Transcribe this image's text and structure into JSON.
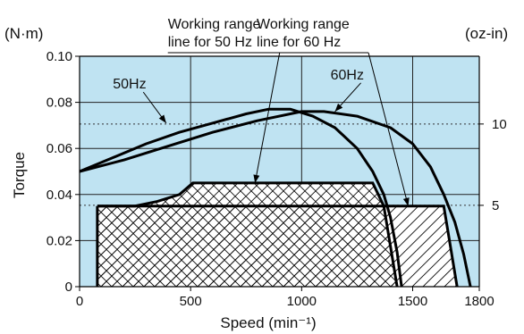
{
  "chart_data": {
    "type": "line",
    "xlabel": "Speed (min⁻¹)",
    "ylabel": "Torque",
    "y_unit_left": "(N·m)",
    "y_unit_right": "(oz-in)",
    "xlim": [
      0,
      1800
    ],
    "ylim": [
      0,
      0.1
    ],
    "x_ticks": [
      0,
      500,
      1000,
      1500,
      1800
    ],
    "x_tick_labels": [
      "0",
      "500",
      "1000",
      "1500",
      "1800"
    ],
    "y_ticks": [
      0,
      0.02,
      0.04,
      0.06,
      0.08,
      0.1
    ],
    "y_tick_labels": [
      "0",
      "0.02",
      "0.04",
      "0.06",
      "0.08",
      "0.10"
    ],
    "secondary_axis": {
      "ticks": [
        {
          "label": "5",
          "y": 0.0353
        },
        {
          "label": "10",
          "y": 0.0706
        }
      ]
    },
    "plot_background": "#bfe3f2",
    "grid": true,
    "series": [
      {
        "name": "50Hz",
        "x": [
          0,
          150,
          300,
          450,
          600,
          750,
          850,
          950,
          1050,
          1150,
          1250,
          1320,
          1370,
          1400,
          1430,
          1450
        ],
        "y": [
          0.05,
          0.056,
          0.062,
          0.067,
          0.071,
          0.075,
          0.077,
          0.077,
          0.074,
          0.069,
          0.06,
          0.05,
          0.04,
          0.03,
          0.015,
          0
        ]
      },
      {
        "name": "60Hz",
        "x": [
          0,
          200,
          400,
          600,
          800,
          1000,
          1100,
          1250,
          1400,
          1500,
          1580,
          1640,
          1690,
          1730,
          1760
        ],
        "y": [
          0.05,
          0.055,
          0.061,
          0.067,
          0.072,
          0.076,
          0.076,
          0.074,
          0.069,
          0.062,
          0.052,
          0.04,
          0.028,
          0.014,
          0
        ]
      }
    ],
    "working_ranges": [
      {
        "name": "Working range line for 50 Hz",
        "polygon": [
          [
            80,
            0.035
          ],
          [
            250,
            0.035
          ],
          [
            350,
            0.037
          ],
          [
            450,
            0.04
          ],
          [
            510,
            0.045
          ],
          [
            1320,
            0.045
          ],
          [
            1370,
            0.035
          ],
          [
            1430,
            0
          ],
          [
            80,
            0
          ]
        ]
      },
      {
        "name": "Working range line for 60 Hz",
        "polygon": [
          [
            80,
            0.035
          ],
          [
            1640,
            0.035
          ],
          [
            1700,
            0
          ],
          [
            80,
            0
          ]
        ]
      }
    ],
    "annotations": [
      {
        "text": "50Hz",
        "x": 150,
        "y": 0.086,
        "arrow_to": [
          390,
          0.071
        ]
      },
      {
        "text": "60Hz",
        "x": 1130,
        "y": 0.09,
        "arrow_to": [
          1150,
          0.076
        ]
      },
      {
        "text": "Working range\nline for 50 Hz",
        "x": 780,
        "y": 0.112,
        "arrow_to": [
          790,
          0.045
        ]
      },
      {
        "text": "Working range\nline for 60 Hz",
        "x": 1180,
        "y": 0.112,
        "arrow_to": [
          1480,
          0.035
        ]
      }
    ]
  }
}
